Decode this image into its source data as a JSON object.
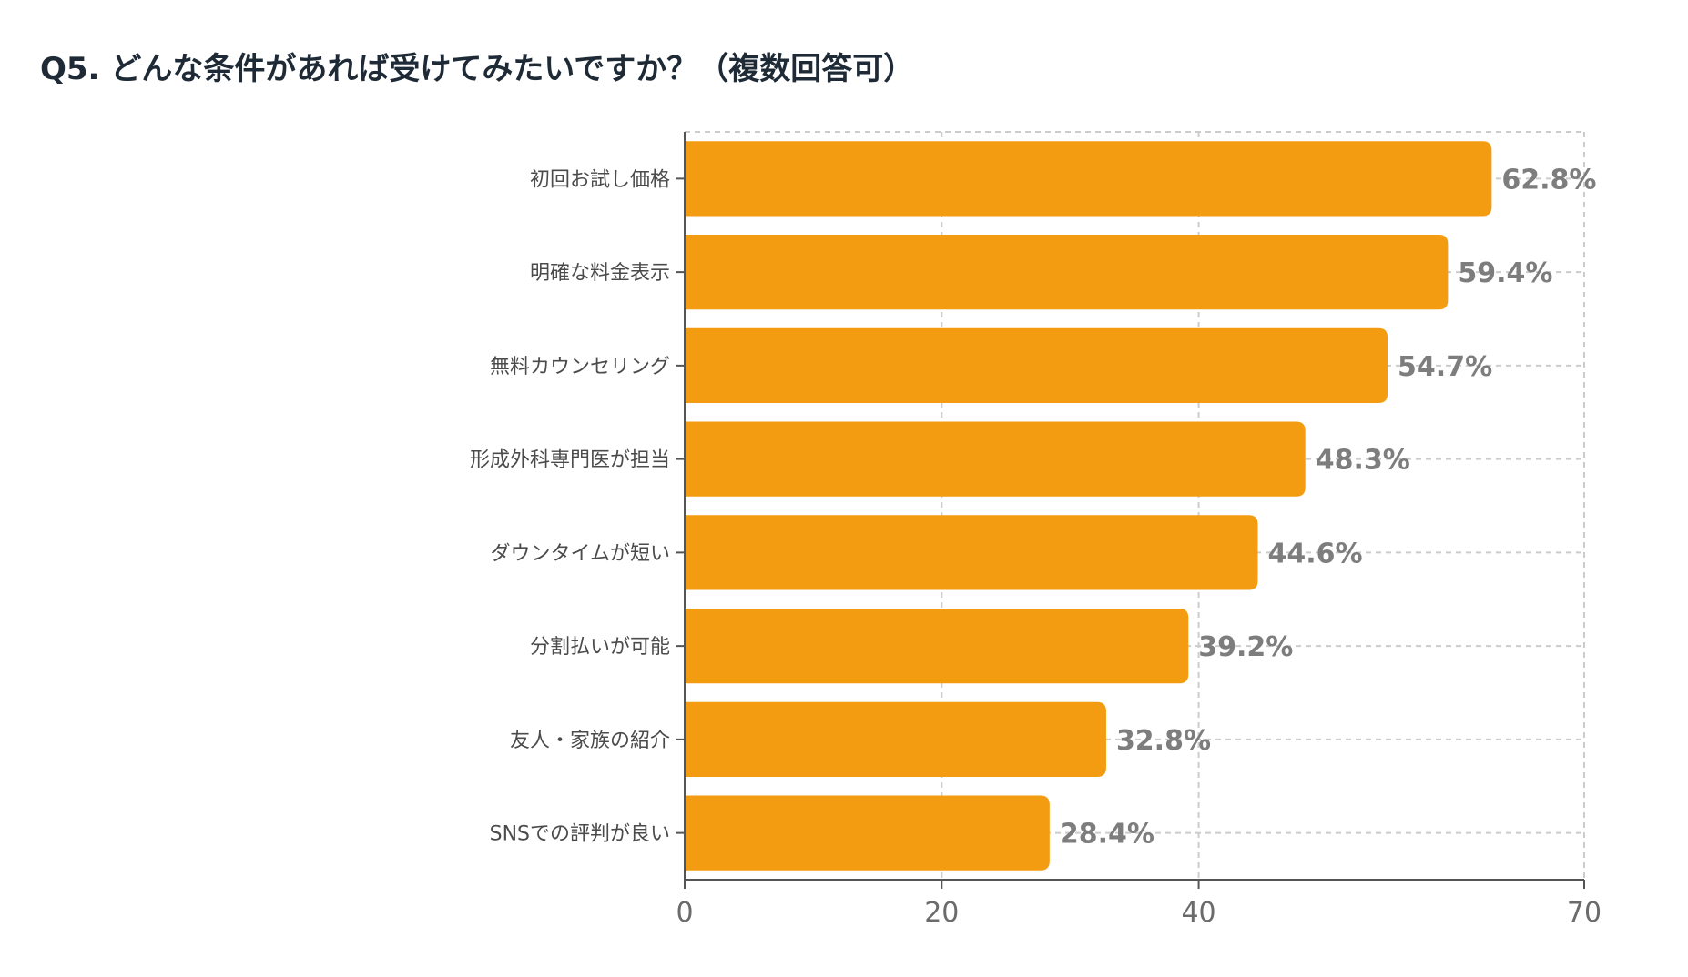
{
  "chart_data": {
    "type": "bar",
    "orientation": "horizontal",
    "title": "Q5. どんな条件があれば受けてみたいですか？（複数回答可）",
    "categories": [
      "初回お試し価格",
      "明確な料金表示",
      "無料カウンセリング",
      "形成外科専門医が担当",
      "ダウンタイムが短い",
      "分割払いが可能",
      "友人・家族の紹介",
      "SNSでの評判が良い"
    ],
    "values": [
      62.8,
      59.4,
      54.7,
      48.3,
      44.6,
      39.2,
      32.8,
      28.4
    ],
    "value_labels": [
      "62.8%",
      "59.4%",
      "54.7%",
      "48.3%",
      "44.6%",
      "39.2%",
      "32.8%",
      "28.4%"
    ],
    "xlim": [
      0,
      70
    ],
    "xticks": [
      0,
      20,
      40,
      70
    ],
    "xtick_labels": [
      "0",
      "20",
      "40",
      "70"
    ],
    "grid": true,
    "bar_color": "#F39C12",
    "grid_color": "#cccccc",
    "axis_color": "#555555"
  }
}
